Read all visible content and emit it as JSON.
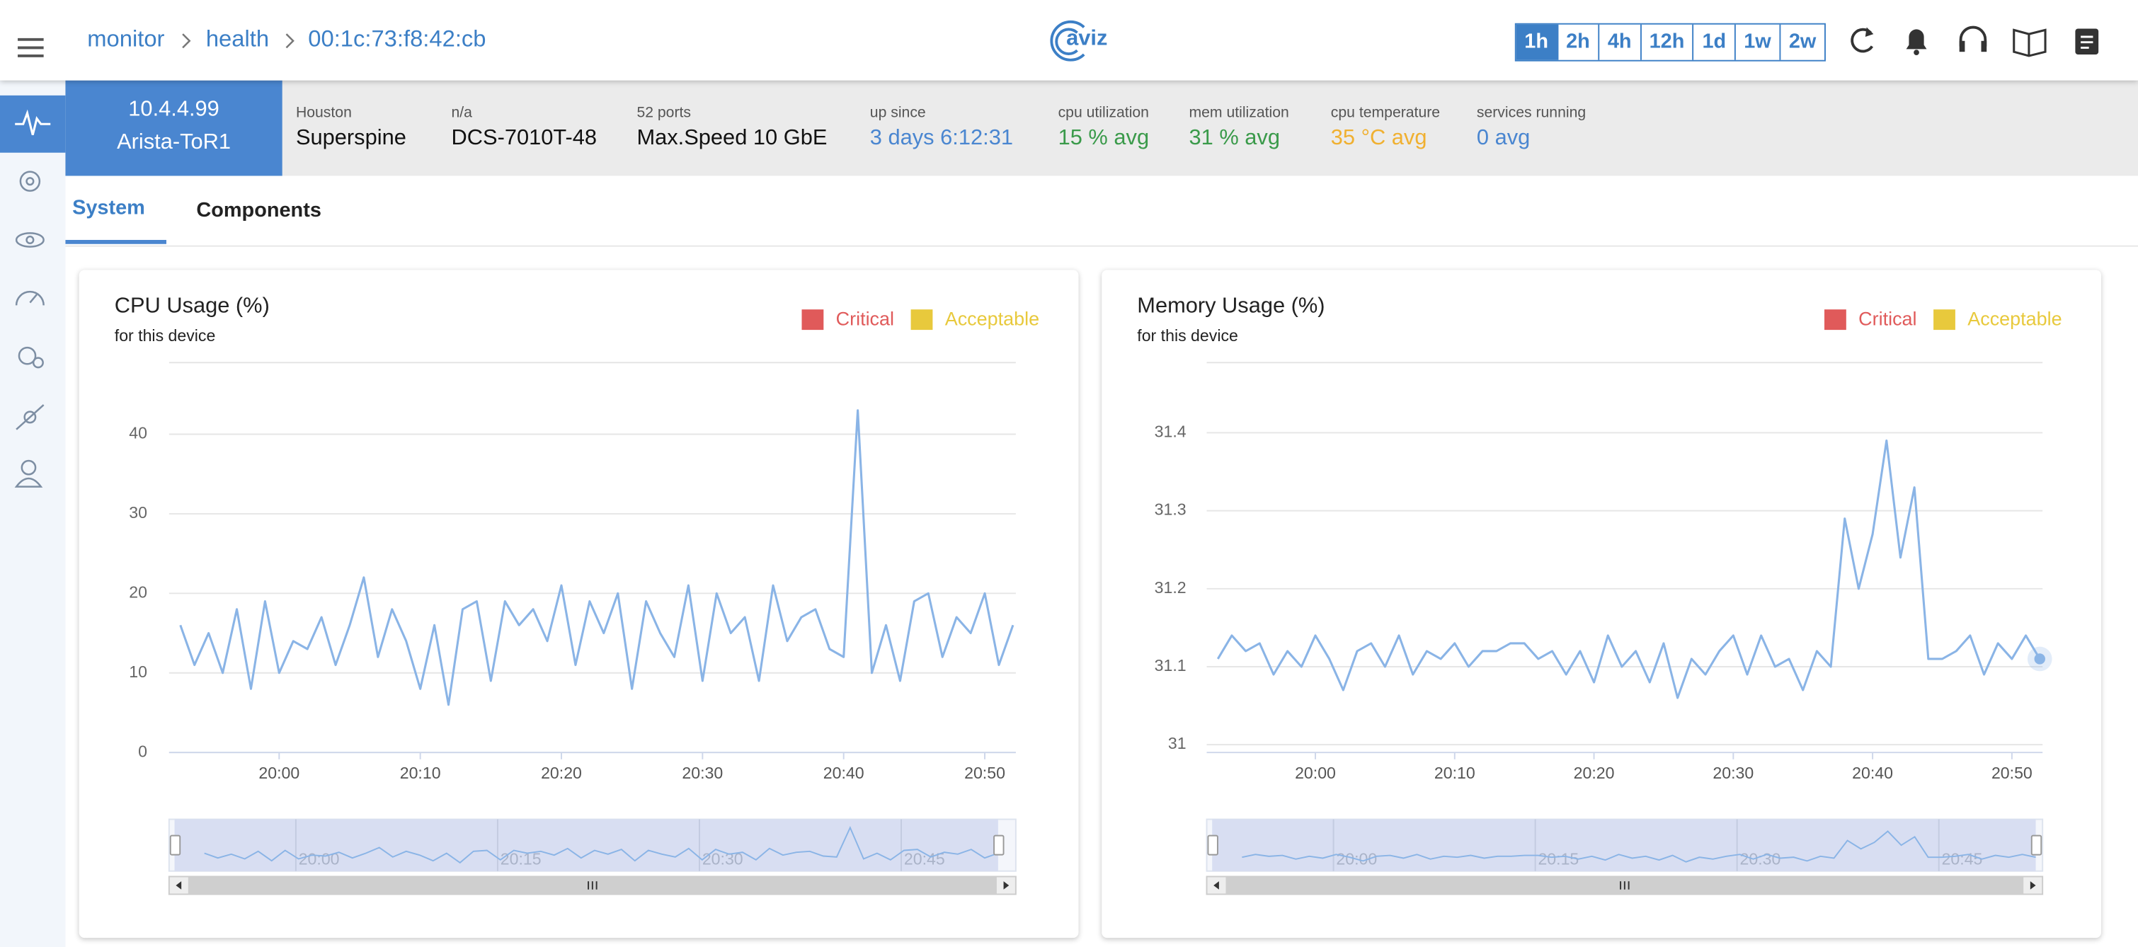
{
  "breadcrumb": [
    "monitor",
    "health",
    "00:1c:73:f8:42:cb"
  ],
  "logo": "aviz",
  "time_ranges": [
    "1h",
    "2h",
    "4h",
    "12h",
    "1d",
    "1w",
    "2w"
  ],
  "device": {
    "ip": "10.4.4.99",
    "name": "Arista-ToR1"
  },
  "info": [
    {
      "label": "Houston",
      "value": "Superspine"
    },
    {
      "label": "n/a",
      "value": "DCS-7010T-48"
    },
    {
      "label": "52 ports",
      "value": "Max.Speed 10 GbE"
    },
    {
      "label": "up since",
      "value": "3 days 6:12:31"
    },
    {
      "label": "cpu utilization",
      "value": "15 % avg"
    },
    {
      "label": "mem utilization",
      "value": "31 % avg"
    },
    {
      "label": "cpu temperature",
      "value": "35 °C avg"
    },
    {
      "label": "services running",
      "value": "0 avg"
    }
  ],
  "tabs": [
    "System",
    "Components"
  ],
  "chart_data": [
    {
      "type": "line",
      "title": "CPU Usage (%)",
      "subtitle": "for this device",
      "legend": [
        {
          "name": "Critical",
          "color": "#e05a5a"
        },
        {
          "name": "Acceptable",
          "color": "#e8c93c"
        }
      ],
      "x": [
        1193,
        1194,
        1195,
        1196,
        1197,
        1198,
        1199,
        1200,
        1201,
        1202,
        1203,
        1204,
        1205,
        1206,
        1207,
        1208,
        1209,
        1210,
        1211,
        1212,
        1213,
        1214,
        1215,
        1216,
        1217,
        1218,
        1219,
        1220,
        1221,
        1222,
        1223,
        1224,
        1225,
        1226,
        1227,
        1228,
        1229,
        1230,
        1231,
        1232,
        1233,
        1234,
        1235,
        1236,
        1237,
        1238,
        1239,
        1240,
        1241,
        1242,
        1243,
        1244,
        1245,
        1246,
        1247,
        1248,
        1249,
        1250,
        1251,
        1252
      ],
      "series": [
        {
          "color": "#8ab4e6",
          "values": [
            16,
            11,
            15,
            10,
            18,
            8,
            19,
            10,
            14,
            13,
            17,
            11,
            16,
            22,
            12,
            18,
            14,
            8,
            16,
            6,
            18,
            19,
            9,
            19,
            16,
            18,
            14,
            21,
            11,
            19,
            15,
            20,
            8,
            19,
            15,
            12,
            21,
            9,
            20,
            15,
            17,
            9,
            21,
            14,
            17,
            18,
            13,
            12,
            43,
            10,
            16,
            9,
            19,
            20,
            12,
            17,
            15,
            20,
            11,
            16
          ]
        }
      ],
      "xlim": [
        1192.2,
        1252.2
      ],
      "ylim": [
        0,
        49
      ],
      "yticks": [
        0,
        10,
        20,
        30,
        40
      ],
      "xticks": [
        {
          "value": 1200,
          "label": "20:00"
        },
        {
          "value": 1210,
          "label": "20:10"
        },
        {
          "value": 1220,
          "label": "20:20"
        },
        {
          "value": 1230,
          "label": "20:30"
        },
        {
          "value": 1240,
          "label": "20:40"
        },
        {
          "value": 1250,
          "label": "20:50"
        }
      ],
      "navigator_ticks": [
        {
          "value": 1200,
          "label": "20:00"
        },
        {
          "value": 1215,
          "label": "20:15"
        },
        {
          "value": 1230,
          "label": "20:30"
        },
        {
          "value": 1245,
          "label": "20:45"
        }
      ],
      "grid": true
    },
    {
      "type": "line",
      "title": "Memory Usage (%)",
      "subtitle": "for this device",
      "legend": [
        {
          "name": "Critical",
          "color": "#e05a5a"
        },
        {
          "name": "Acceptable",
          "color": "#e8c93c"
        }
      ],
      "x": [
        1193,
        1194,
        1195,
        1196,
        1197,
        1198,
        1199,
        1200,
        1201,
        1202,
        1203,
        1204,
        1205,
        1206,
        1207,
        1208,
        1209,
        1210,
        1211,
        1212,
        1213,
        1214,
        1215,
        1216,
        1217,
        1218,
        1219,
        1220,
        1221,
        1222,
        1223,
        1224,
        1225,
        1226,
        1227,
        1228,
        1229,
        1230,
        1231,
        1232,
        1233,
        1234,
        1235,
        1236,
        1237,
        1238,
        1239,
        1240,
        1241,
        1242,
        1243,
        1244,
        1245,
        1246,
        1247,
        1248,
        1249,
        1250,
        1251,
        1252
      ],
      "series": [
        {
          "color": "#8ab4e6",
          "values": [
            31.11,
            31.14,
            31.12,
            31.13,
            31.09,
            31.12,
            31.1,
            31.14,
            31.11,
            31.07,
            31.12,
            31.13,
            31.1,
            31.14,
            31.09,
            31.12,
            31.11,
            31.13,
            31.1,
            31.12,
            31.12,
            31.13,
            31.13,
            31.11,
            31.12,
            31.09,
            31.12,
            31.08,
            31.14,
            31.1,
            31.12,
            31.08,
            31.13,
            31.06,
            31.11,
            31.09,
            31.12,
            31.14,
            31.09,
            31.14,
            31.1,
            31.11,
            31.07,
            31.12,
            31.1,
            31.29,
            31.2,
            31.27,
            31.39,
            31.24,
            31.33,
            31.11,
            31.11,
            31.12,
            31.14,
            31.09,
            31.13,
            31.11,
            31.14,
            31.11
          ]
        }
      ],
      "xlim": [
        1192.2,
        1252.2
      ],
      "ylim": [
        30.99,
        31.49
      ],
      "yticks": [
        31,
        31.1,
        31.2,
        31.3,
        31.4
      ],
      "xticks": [
        {
          "value": 1200,
          "label": "20:00"
        },
        {
          "value": 1210,
          "label": "20:10"
        },
        {
          "value": 1220,
          "label": "20:20"
        },
        {
          "value": 1230,
          "label": "20:30"
        },
        {
          "value": 1240,
          "label": "20:40"
        },
        {
          "value": 1250,
          "label": "20:50"
        }
      ],
      "navigator_ticks": [
        {
          "value": 1200,
          "label": "20:00"
        },
        {
          "value": 1215,
          "label": "20:15"
        },
        {
          "value": 1230,
          "label": "20:30"
        },
        {
          "value": 1245,
          "label": "20:45"
        }
      ],
      "grid": true,
      "highlight_last": true
    }
  ]
}
